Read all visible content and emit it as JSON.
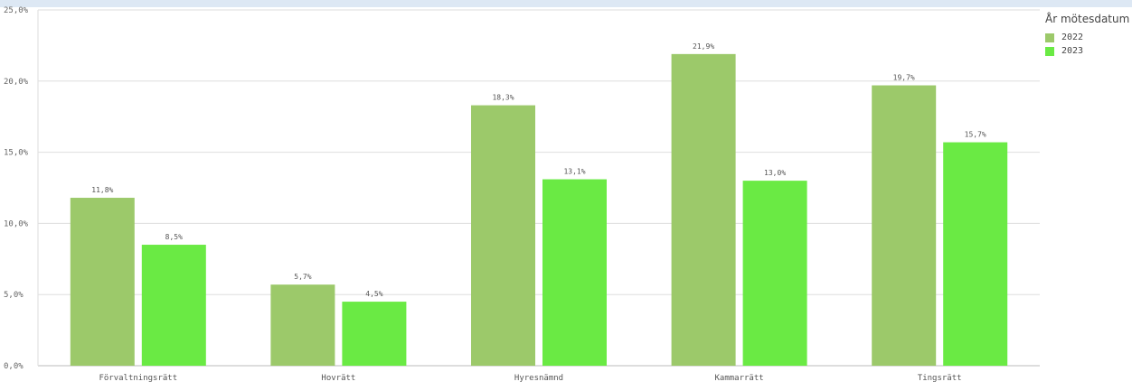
{
  "chart_data": {
    "type": "bar",
    "categories": [
      "Förvaltningsrätt",
      "Hovrätt",
      "Hyresnämnd",
      "Kammarrätt",
      "Tingsrätt"
    ],
    "series": [
      {
        "name": "2022",
        "color": "#9cc96a",
        "values": [
          11.8,
          5.7,
          18.3,
          21.9,
          19.7
        ],
        "labels": [
          "11,8%",
          "5,7%",
          "18,3%",
          "21,9%",
          "19,7%"
        ]
      },
      {
        "name": "2023",
        "color": "#6aea44",
        "values": [
          8.5,
          4.5,
          13.1,
          13.0,
          15.7
        ],
        "labels": [
          "8,5%",
          "4,5%",
          "13,1%",
          "13,0%",
          "15,7%"
        ]
      }
    ],
    "ylim": [
      0,
      25
    ],
    "yticks": [
      0,
      5,
      10,
      15,
      20,
      25
    ],
    "ytick_labels": [
      "0,0%",
      "5,0%",
      "10,0%",
      "15,0%",
      "20,0%",
      "25,0%"
    ],
    "grid": true,
    "legend": {
      "title": "År mötesdatum",
      "position": "top-right"
    }
  }
}
